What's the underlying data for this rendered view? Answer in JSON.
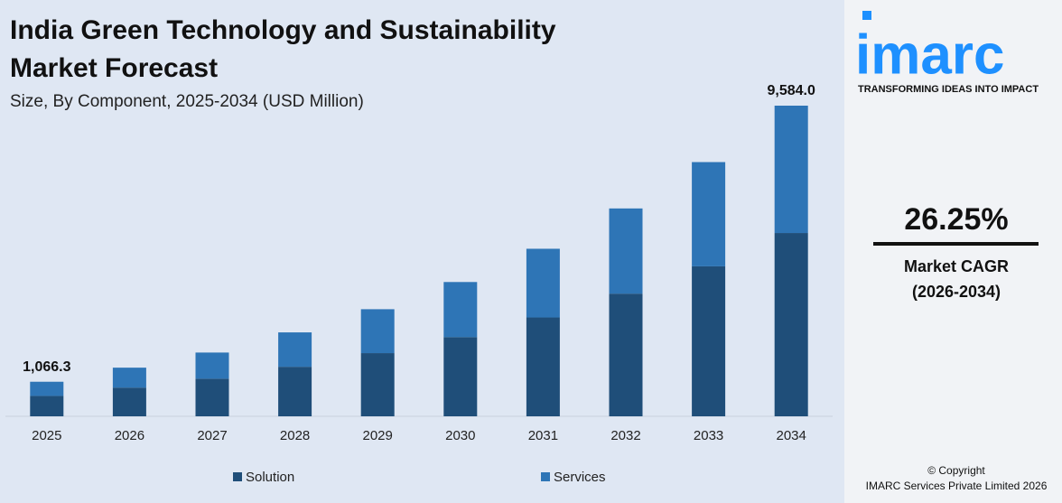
{
  "chart_data": {
    "type": "stacked_bar",
    "title_lines": [
      "India Green Technology and Sustainability",
      "Market Forecast"
    ],
    "subtitle": "Size, By Component, 2025-2034 (USD Million)",
    "categories": [
      "2025",
      "2026",
      "2027",
      "2028",
      "2029",
      "2030",
      "2031",
      "2032",
      "2033",
      "2034"
    ],
    "series": [
      {
        "name": "Solution",
        "color": "#1f4e79",
        "values": [
          629.1,
          886,
          1161,
          1528,
          1949,
          2444,
          3050,
          3784,
          4627,
          5654.6
        ]
      },
      {
        "name": "Services",
        "color": "#2e75b6",
        "values": [
          437.2,
          615,
          806,
          1061,
          1355,
          1699,
          2119,
          2629,
          3216,
          3929.4
        ]
      }
    ],
    "total_labels": [
      "1,066.3",
      null,
      null,
      null,
      null,
      null,
      null,
      null,
      null,
      "9,584.0"
    ],
    "legend": "bottom"
  },
  "sidebar": {
    "logo": "imarc",
    "tagline": "TRANSFORMING IDEAS INTO IMPACT",
    "cagr": "26.25%",
    "cagr_label": "Market CAGR",
    "cagr_period": "(2026-2034)",
    "copyright": "© Copyright",
    "company": "IMARC Services Private Limited 2026"
  }
}
